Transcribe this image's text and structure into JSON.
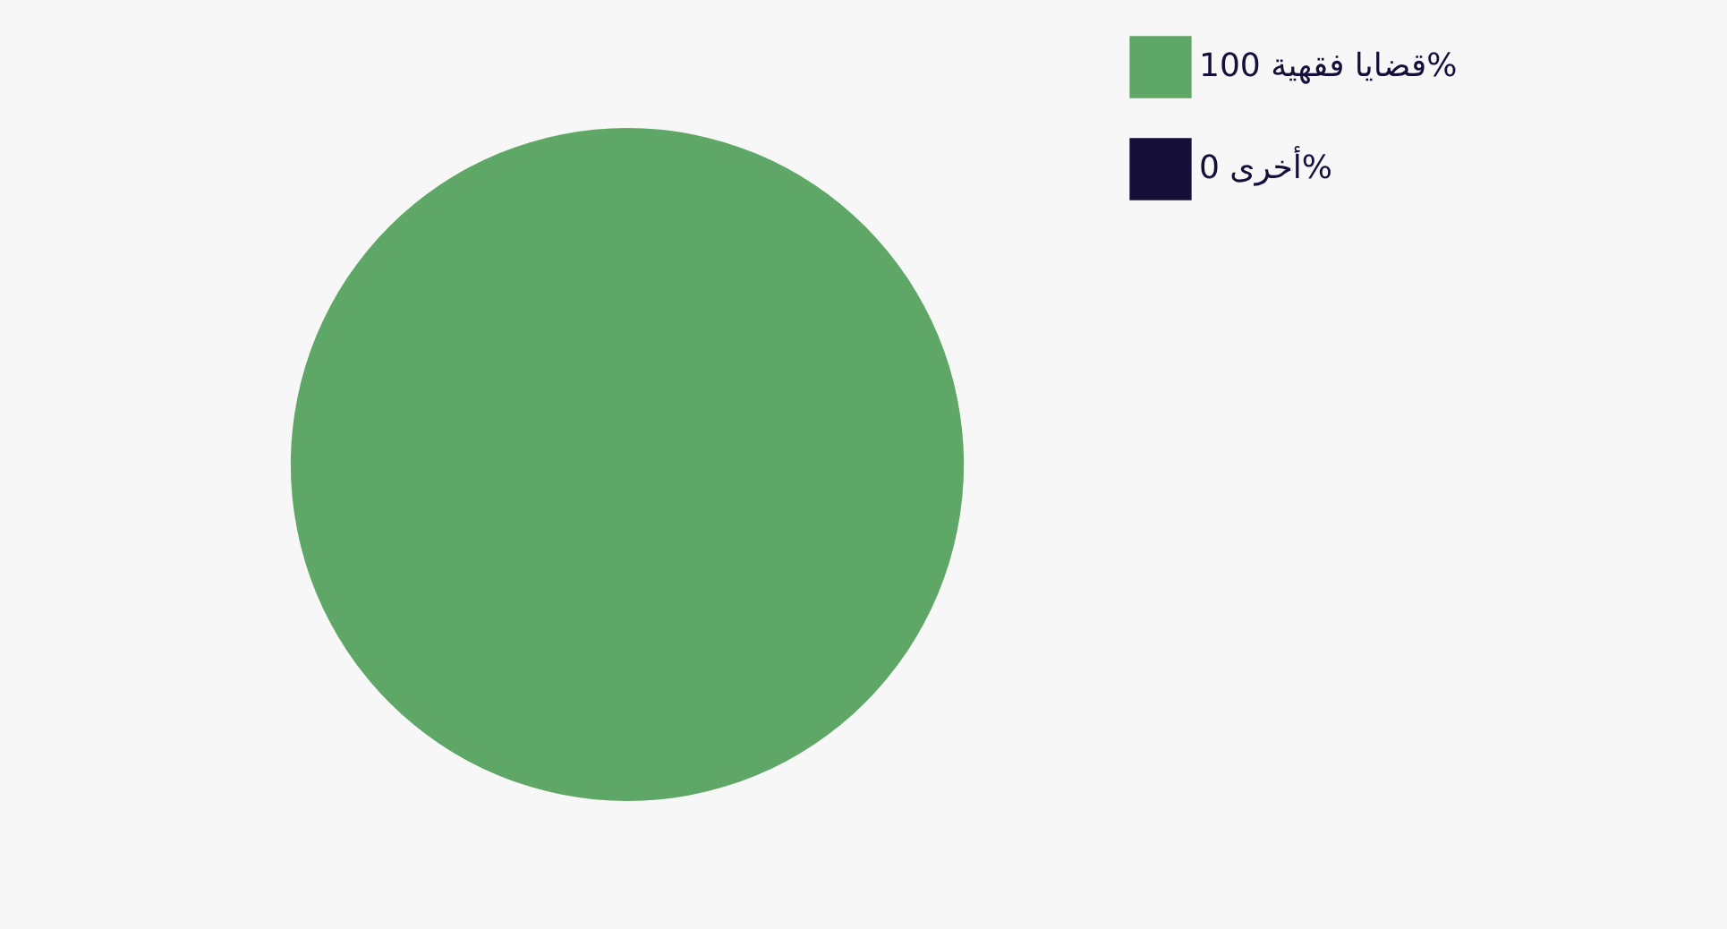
{
  "chart_data": {
    "type": "pie",
    "categories": [
      "قضايا فقهية",
      "أخرى"
    ],
    "values": [
      100,
      0
    ],
    "value_labels": [
      "100%",
      "0%"
    ],
    "colors": [
      "#5fa766",
      "#150f3a"
    ],
    "legend": "right"
  }
}
